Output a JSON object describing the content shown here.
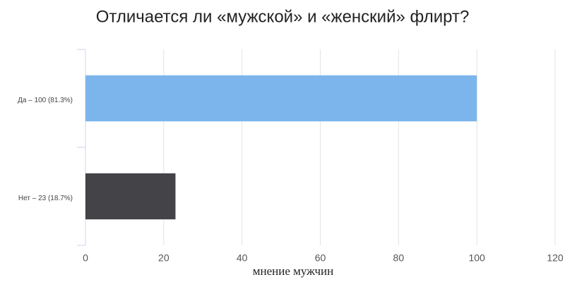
{
  "chart_data": {
    "type": "bar",
    "title": "Отличается ли «мужской» и «женский» флирт?",
    "categories": [
      "Да – 100 (81.3%)",
      "Нет – 23 (18.7%)"
    ],
    "values": [
      100,
      23
    ],
    "colors": [
      "#7cb5ec",
      "#434348"
    ],
    "x_label": "мнение мужчин",
    "xlim": [
      0,
      120
    ],
    "xticks": [
      0,
      20,
      40,
      60,
      80,
      100,
      120
    ],
    "grid": true
  }
}
